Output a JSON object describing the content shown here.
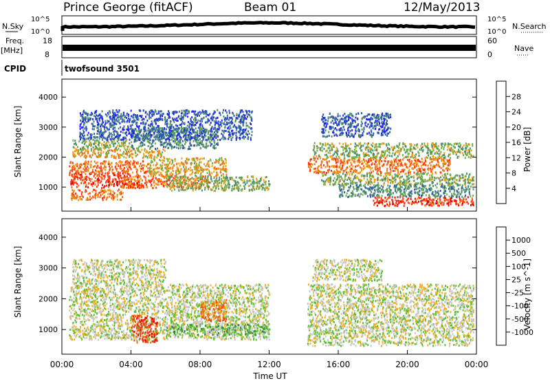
{
  "header": {
    "station": "Prince George (fitACF)",
    "beam": "Beam 01",
    "date": "12/May/2013"
  },
  "strips": {
    "nsky_label": "N.Sky",
    "nsky_top": "10^5",
    "nsky_bottom": "10^0",
    "nsearch_label": "N.Search",
    "nsearch_top": "10^5",
    "nsearch_bottom": "10^0",
    "freq_label": "Freq.",
    "freq_unit": "[MHz]",
    "freq_top": "18",
    "freq_bottom": "8",
    "nave_label": "Nave",
    "nave_top": "60",
    "nave_bottom": "0",
    "cpid_label": "CPID",
    "cpid_text": "twofsound 3501"
  },
  "chart_data": [
    {
      "type": "heatmap",
      "name": "power",
      "ylabel": "Slant Range [km]",
      "ylim": [
        200,
        4600
      ],
      "yticks": [
        1000,
        2000,
        3000,
        4000
      ],
      "xlim": [
        0,
        24
      ],
      "colorbar": {
        "label": "Power [dB]",
        "ticks": [
          "4",
          "8",
          "12",
          "16",
          "20",
          "24",
          "28"
        ],
        "colors": [
          "#1f1fff",
          "#2a5aa8",
          "#4e8a6e",
          "#6ab04a",
          "#f0a018",
          "#f07018",
          "#ff3010",
          "#e80000"
        ]
      },
      "bands": [
        {
          "t": [
            0.4,
            4.5
          ],
          "r": [
            1000,
            1500
          ],
          "level": 6
        },
        {
          "t": [
            0.4,
            5.0
          ],
          "r": [
            1500,
            1900
          ],
          "level": 5
        },
        {
          "t": [
            0.5,
            6.0
          ],
          "r": [
            2000,
            2300
          ],
          "level": 4
        },
        {
          "t": [
            0.6,
            4.0
          ],
          "r": [
            2300,
            2600
          ],
          "level": 3
        },
        {
          "t": [
            0.5,
            3.5
          ],
          "r": [
            600,
            950
          ],
          "level": 5
        },
        {
          "t": [
            3.5,
            8.5
          ],
          "r": [
            1000,
            1400
          ],
          "level": 5
        },
        {
          "t": [
            5.0,
            9.5
          ],
          "r": [
            1400,
            2000
          ],
          "level": 4
        },
        {
          "t": [
            6.0,
            12.0
          ],
          "r": [
            900,
            1400
          ],
          "level": 3
        },
        {
          "t": [
            4.0,
            9.0
          ],
          "r": [
            2300,
            3000
          ],
          "level": 2
        },
        {
          "t": [
            1.0,
            11.0
          ],
          "r": [
            2600,
            3600
          ],
          "level": 1
        },
        {
          "t": [
            14.2,
            22.5
          ],
          "r": [
            1500,
            2000
          ],
          "level": 5
        },
        {
          "t": [
            14.5,
            23.8
          ],
          "r": [
            2000,
            2500
          ],
          "level": 3
        },
        {
          "t": [
            15.0,
            23.8
          ],
          "r": [
            1100,
            1500
          ],
          "level": 3
        },
        {
          "t": [
            18.0,
            23.8
          ],
          "r": [
            400,
            700
          ],
          "level": 6
        },
        {
          "t": [
            16.0,
            23.8
          ],
          "r": [
            700,
            1100
          ],
          "level": 2
        },
        {
          "t": [
            15.0,
            19.0
          ],
          "r": [
            2700,
            3500
          ],
          "level": 1
        }
      ]
    },
    {
      "type": "heatmap",
      "name": "velocity",
      "ylabel": "Slant Range [km]",
      "ylim": [
        200,
        4600
      ],
      "yticks": [
        1000,
        2000,
        3000,
        4000
      ],
      "xlim": [
        0,
        24
      ],
      "xticks": [
        "00:00",
        "04:00",
        "08:00",
        "12:00",
        "16:00",
        "20:00",
        "00:00"
      ],
      "xlabel": "Time UT",
      "colorbar": {
        "label": "Velocity [m s^-1]",
        "ticks": [
          "1000",
          "500",
          "100",
          "25",
          "-25",
          "-100",
          "-500",
          "-1000"
        ],
        "colors": [
          "#1a3cc8",
          "#2a6ab8",
          "#2e8a3e",
          "#58c030",
          "#c8c8c8",
          "#f0b020",
          "#f07010",
          "#f03818",
          "#e80000"
        ]
      },
      "bands": [
        {
          "t": [
            0.4,
            12.0
          ],
          "r": [
            700,
            2500
          ],
          "level": 4
        },
        {
          "t": [
            0.6,
            6.0
          ],
          "r": [
            2500,
            3300
          ],
          "level": 4
        },
        {
          "t": [
            4.0,
            5.5
          ],
          "r": [
            600,
            1500
          ],
          "level": 7
        },
        {
          "t": [
            8.0,
            9.5
          ],
          "r": [
            1300,
            2000
          ],
          "level": 6
        },
        {
          "t": [
            6.0,
            12.0
          ],
          "r": [
            850,
            1200
          ],
          "level": 3
        },
        {
          "t": [
            14.2,
            23.8
          ],
          "r": [
            500,
            2500
          ],
          "level": 4
        },
        {
          "t": [
            14.5,
            18.5
          ],
          "r": [
            2600,
            3300
          ],
          "level": 4
        }
      ]
    }
  ]
}
